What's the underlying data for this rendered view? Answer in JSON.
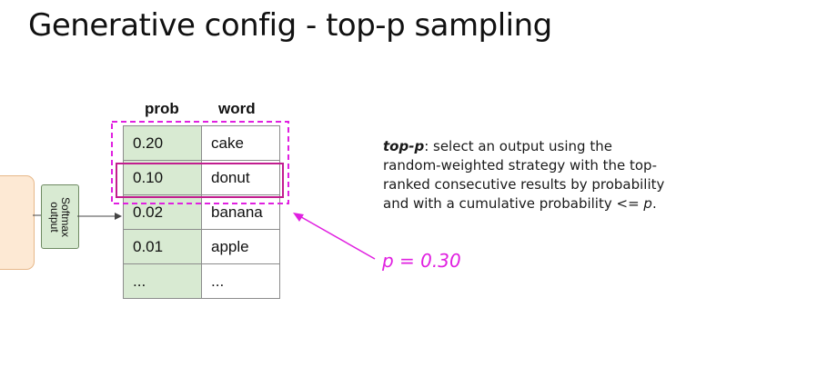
{
  "slide": {
    "title": "Generative config - top-p sampling"
  },
  "model": {
    "softmax_line1": "Softmax",
    "softmax_line2": "output"
  },
  "table": {
    "headers": {
      "prob": "prob",
      "word": "word"
    },
    "rows": [
      {
        "prob": "0.20",
        "word": "cake"
      },
      {
        "prob": "0.10",
        "word": "donut"
      },
      {
        "prob": "0.02",
        "word": "banana"
      },
      {
        "prob": "0.01",
        "word": "apple"
      },
      {
        "prob": "...",
        "word": "..."
      }
    ]
  },
  "description": {
    "term": "top-p",
    "text_before_p": ": select an output using the random-weighted strategy with the top-ranked consecutive results by probability and with a cumulative probability <= ",
    "p_symbol": "p",
    "text_after_p": "."
  },
  "p_value": "p = 0.30",
  "colors": {
    "accent": "#e020e0",
    "prob_column": "#d8ead2",
    "model_box": "#fde9d4",
    "selection_box": "#c21d8f"
  }
}
